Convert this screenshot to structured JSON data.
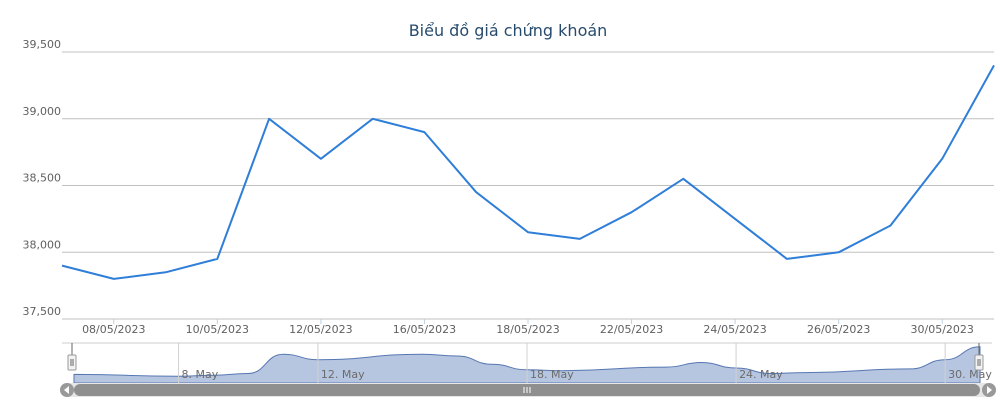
{
  "chart_data": {
    "type": "line",
    "title": "Biểu đồ giá chứng khoán",
    "xlabel": "",
    "ylabel": "",
    "ylim": [
      37500,
      39500
    ],
    "y_ticks": [
      37500,
      38000,
      38500,
      39000,
      39500
    ],
    "y_tick_labels": [
      "37,500",
      "38,000",
      "38,500",
      "39,000",
      "39,500"
    ],
    "x_tick_labels": [
      "08/05/2023",
      "10/05/2023",
      "12/05/2023",
      "16/05/2023",
      "18/05/2023",
      "22/05/2023",
      "24/05/2023",
      "26/05/2023",
      "30/05/2023"
    ],
    "x": [
      "05/05/2023",
      "08/05/2023",
      "09/05/2023",
      "10/05/2023",
      "11/05/2023",
      "12/05/2023",
      "15/05/2023",
      "16/05/2023",
      "17/05/2023",
      "18/05/2023",
      "19/05/2023",
      "22/05/2023",
      "23/05/2023",
      "24/05/2023",
      "25/05/2023",
      "26/05/2023",
      "29/05/2023",
      "30/05/2023",
      "31/05/2023"
    ],
    "series": [
      {
        "values": [
          37900,
          37800,
          37850,
          37950,
          39000,
          38700,
          39000,
          38900,
          38450,
          38150,
          38100,
          38300,
          38550,
          38250,
          37950,
          38000,
          38200,
          38700,
          39400
        ],
        "color": "#2f7ed8"
      }
    ],
    "grid": true,
    "navigator": {
      "tick_labels": [
        "8. May",
        "12. May",
        "18. May",
        "24. May",
        "30. May"
      ],
      "fill_color": "#b7c6e0",
      "line_color": "#5677b2"
    },
    "scrollbar": {
      "grip_icon": "grip-icon",
      "left_arrow_icon": "chevron-left-icon",
      "right_arrow_icon": "chevron-right-icon"
    }
  }
}
